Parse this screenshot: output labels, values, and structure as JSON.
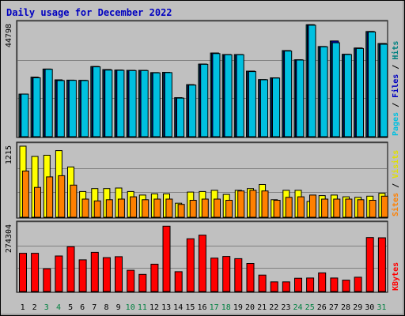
{
  "chart_data": {
    "type": "bar",
    "title": "Daily usage for December 2022",
    "categories": [
      "1",
      "2",
      "3",
      "4",
      "5",
      "6",
      "7",
      "8",
      "9",
      "10",
      "11",
      "12",
      "13",
      "14",
      "15",
      "16",
      "17",
      "18",
      "19",
      "20",
      "21",
      "22",
      "23",
      "24",
      "25",
      "26",
      "27",
      "28",
      "29",
      "30",
      "31"
    ],
    "weekend_days": [
      "3",
      "4",
      "10",
      "11",
      "17",
      "18",
      "24",
      "25",
      "31"
    ],
    "panels": [
      {
        "name": "pages-files-hits",
        "ymax_label": "44798",
        "ylim": [
          0,
          44798
        ],
        "legend": [
          {
            "text": "Pages",
            "color": "#00c0e0"
          },
          {
            "text": " / ",
            "color": "#000000"
          },
          {
            "text": "Files",
            "color": "#0000c0"
          },
          {
            "text": " / ",
            "color": "#000000"
          },
          {
            "text": "Hits",
            "color": "#008080"
          }
        ],
        "series": [
          {
            "name": "Hits",
            "color": "#008080",
            "values": [
              17000,
              23800,
              27000,
              22700,
              22600,
              22500,
              28000,
              26800,
              26600,
              26500,
              26500,
              25600,
              25700,
              15600,
              20800,
              29000,
              33400,
              32800,
              32800,
              26200,
              22800,
              23500,
              34400,
              30700,
              44700,
              36000,
              38200,
              32900,
              35400,
              42000,
              37200
            ]
          },
          {
            "name": "Files",
            "color": "#0000c0",
            "values": [
              17000,
              23600,
              27000,
              22500,
              22500,
              22500,
              28000,
              26800,
              26600,
              26500,
              26500,
              25600,
              25600,
              15500,
              20700,
              29000,
              33400,
              32800,
              32800,
              26200,
              22800,
              23500,
              34400,
              30700,
              44700,
              36000,
              38200,
              32900,
              35400,
              42000,
              37200
            ]
          },
          {
            "name": "Pages",
            "color": "#00c0e0",
            "values": [
              17000,
              23500,
              26900,
              22400,
              22500,
              22400,
              27900,
              26600,
              26500,
              26400,
              26400,
              25500,
              25600,
              15400,
              20600,
              28900,
              33200,
              32700,
              32700,
              26000,
              22700,
              23400,
              34200,
              30600,
              44500,
              35900,
              37500,
              32800,
              35200,
              41800,
              36900
            ]
          }
        ]
      },
      {
        "name": "sites-visits",
        "ymax_label": "1215",
        "ylim": [
          0,
          1215
        ],
        "legend": [
          {
            "text": "Sites",
            "color": "#ff8000"
          },
          {
            "text": " / ",
            "color": "#000000"
          },
          {
            "text": "Visits",
            "color": "#e0e000"
          }
        ],
        "series": [
          {
            "name": "Visits",
            "color": "#ffff00",
            "values": [
              1215,
              1040,
              1060,
              1140,
              860,
              440,
              490,
              490,
              500,
              440,
              380,
              400,
              400,
              240,
              430,
              440,
              460,
              390,
              460,
              490,
              560,
              300,
              460,
              460,
              270,
              370,
              380,
              350,
              340,
              360,
              410
            ]
          },
          {
            "name": "Sites",
            "color": "#ff8000",
            "values": [
              790,
              510,
              690,
              710,
              550,
              310,
              280,
              300,
              310,
              350,
              300,
              310,
              310,
              220,
              290,
              310,
              310,
              290,
              450,
              460,
              450,
              290,
              340,
              350,
              380,
              310,
              310,
              310,
              300,
              290,
              360
            ]
          }
        ]
      },
      {
        "name": "kbytes",
        "ymax_label": "274304",
        "ylim": [
          0,
          274304
        ],
        "legend": [
          {
            "text": "KBytes",
            "color": "#ff0000"
          }
        ],
        "series": [
          {
            "name": "KBytes",
            "color": "#ff0000",
            "values": [
              158000,
              158000,
              94000,
              147000,
              185000,
              131000,
              162000,
              140000,
              144000,
              88000,
              71000,
              113000,
              270000,
              82000,
              218000,
              233000,
              138000,
              145000,
              136000,
              116000,
              68000,
              40000,
              40000,
              55000,
              56000,
              77000,
              56000,
              47000,
              59000,
              223000,
              222000
            ]
          }
        ]
      }
    ]
  }
}
